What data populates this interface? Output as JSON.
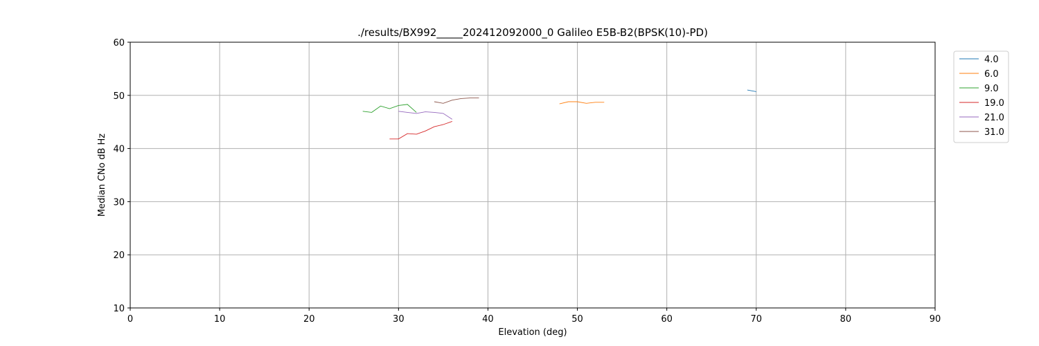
{
  "chart_data": {
    "type": "line",
    "title": "./results/BX992_____202412092000_0 Galileo E5B-B2(BPSK(10)-PD)",
    "xlabel": "Elevation (deg)",
    "ylabel": "Median CNo dB Hz",
    "xlim": [
      0,
      90
    ],
    "ylim": [
      10,
      60
    ],
    "xticks": [
      0,
      10,
      20,
      30,
      40,
      50,
      60,
      70,
      80,
      90
    ],
    "yticks": [
      10,
      20,
      30,
      40,
      50,
      60
    ],
    "grid": true,
    "legend_position": "outside-right-top",
    "series": [
      {
        "name": "4.0",
        "color": "#1f77b4",
        "x": [
          69,
          70
        ],
        "y": [
          51.0,
          50.7
        ]
      },
      {
        "name": "6.0",
        "color": "#ff7f0e",
        "x": [
          48,
          49,
          50,
          51,
          52,
          53
        ],
        "y": [
          48.4,
          48.8,
          48.8,
          48.5,
          48.7,
          48.7
        ]
      },
      {
        "name": "9.0",
        "color": "#2ca02c",
        "x": [
          26,
          27,
          28,
          29,
          30,
          31,
          32
        ],
        "y": [
          47.0,
          46.8,
          48.0,
          47.5,
          48.1,
          48.3,
          46.8
        ]
      },
      {
        "name": "19.0",
        "color": "#d62728",
        "x": [
          29,
          30,
          31,
          32,
          33,
          34,
          35,
          36
        ],
        "y": [
          41.8,
          41.8,
          42.8,
          42.7,
          43.3,
          44.1,
          44.5,
          45.1
        ]
      },
      {
        "name": "21.0",
        "color": "#9467bd",
        "x": [
          30,
          31,
          32,
          33,
          34,
          35,
          36
        ],
        "y": [
          47.0,
          46.8,
          46.6,
          46.9,
          46.8,
          46.6,
          45.5
        ]
      },
      {
        "name": "31.0",
        "color": "#8c564b",
        "x": [
          34,
          35,
          36,
          37,
          38,
          39
        ],
        "y": [
          48.8,
          48.5,
          49.1,
          49.4,
          49.5,
          49.5
        ]
      }
    ]
  }
}
